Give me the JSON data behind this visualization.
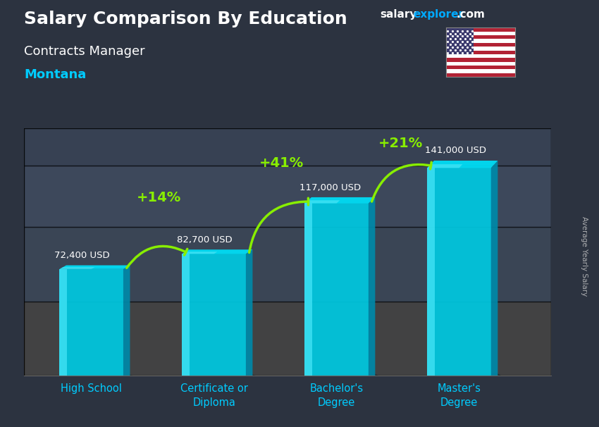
{
  "title_salary": "Salary Comparison By Education",
  "subtitle": "Contracts Manager",
  "location": "Montana",
  "watermark_salary": "salary",
  "watermark_explorer": "explorer",
  "watermark_com": ".com",
  "ylabel_rotated": "Average Yearly Salary",
  "categories": [
    "High School",
    "Certificate or\nDiploma",
    "Bachelor's\nDegree",
    "Master's\nDegree"
  ],
  "values": [
    72400,
    82700,
    117000,
    141000
  ],
  "value_labels": [
    "72,400 USD",
    "82,700 USD",
    "117,000 USD",
    "141,000 USD"
  ],
  "pct_labels": [
    "+14%",
    "+41%",
    "+21%"
  ],
  "bar_face_color": "#00c8e0",
  "bar_side_color": "#0088a8",
  "bar_top_color": "#00ddf5",
  "bar_highlight_color": "#55eeff",
  "bg_overlay_color": "#1a2535",
  "title_color": "#ffffff",
  "subtitle_color": "#ffffff",
  "location_color": "#00ccff",
  "value_label_color": "#ffffff",
  "pct_label_color": "#aaff00",
  "arrow_color": "#88ee00",
  "watermark_salary_color": "#ffffff",
  "watermark_explorer_color": "#00aaff",
  "watermark_com_color": "#ffffff",
  "ylabel_color": "#cccccc",
  "xticklabel_color": "#00ccff",
  "bar_width": 0.52,
  "depth_x": 0.055,
  "depth_y_ratio": 0.035,
  "ylim": [
    0,
    168000
  ],
  "xlim_left": -0.55,
  "xlim_right": 3.75,
  "figsize": [
    8.5,
    6.06
  ],
  "dpi": 100
}
